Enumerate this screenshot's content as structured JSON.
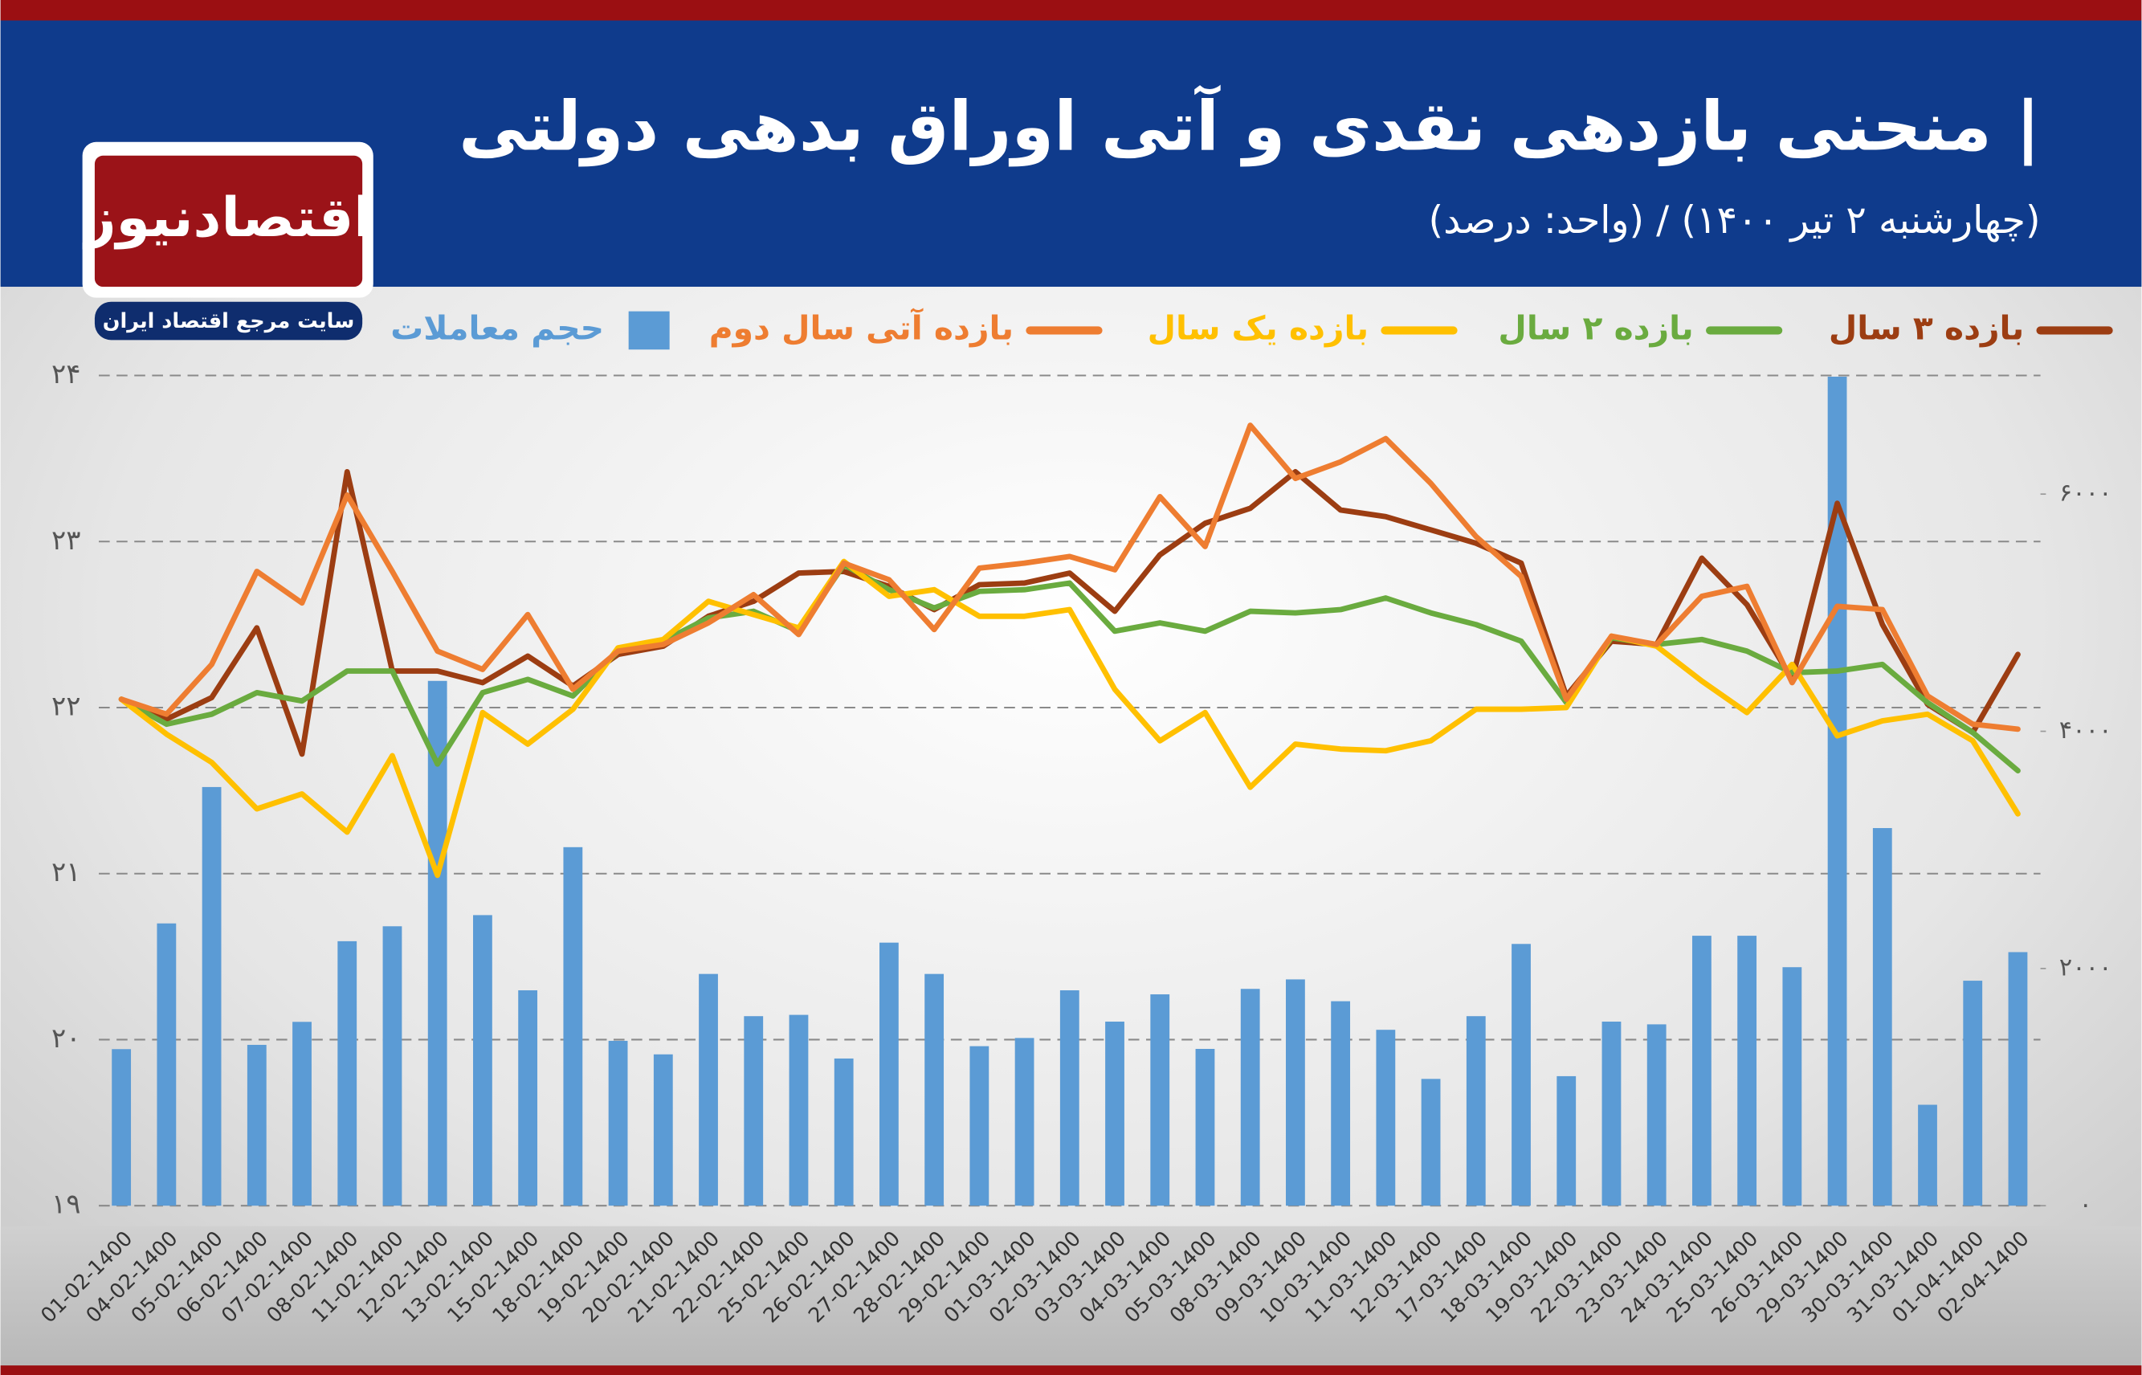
{
  "logo": {
    "name": "اقتصادنیوز",
    "tagline": "سایت مرجع اقتصاد ایران"
  },
  "chart_data": {
    "type": "bar-line",
    "title": "| منحنی بازدهی نقدی و آتی اوراق بدهی دولتی",
    "subtitle": "(چهارشنبه ۲ تیر ۱۴۰۰) /  (واحد: درصد)",
    "categories": [
      "01-02-1400",
      "04-02-1400",
      "05-02-1400",
      "06-02-1400",
      "07-02-1400",
      "08-02-1400",
      "11-02-1400",
      "12-02-1400",
      "13-02-1400",
      "15-02-1400",
      "18-02-1400",
      "19-02-1400",
      "20-02-1400",
      "21-02-1400",
      "22-02-1400",
      "25-02-1400",
      "26-02-1400",
      "27-02-1400",
      "28-02-1400",
      "29-02-1400",
      "01-03-1400",
      "02-03-1400",
      "03-03-1400",
      "04-03-1400",
      "05-03-1400",
      "08-03-1400",
      "09-03-1400",
      "10-03-1400",
      "11-03-1400",
      "12-03-1400",
      "17-03-1400",
      "18-03-1400",
      "19-03-1400",
      "22-03-1400",
      "23-03-1400",
      "24-03-1400",
      "25-03-1400",
      "26-03-1400",
      "29-03-1400",
      "30-03-1400",
      "31-03-1400",
      "01-04-1400",
      "02-04-1400"
    ],
    "series": [
      {
        "name": "بازده ۳ سال",
        "type": "line",
        "color": "#9c3d12",
        "values": [
          22.05,
          21.93,
          22.06,
          22.48,
          21.72,
          23.42,
          22.22,
          22.22,
          22.15,
          22.31,
          22.13,
          22.32,
          22.37,
          22.55,
          22.64,
          22.81,
          22.82,
          22.73,
          22.59,
          22.74,
          22.75,
          22.81,
          22.58,
          22.92,
          23.11,
          23.2,
          23.42,
          23.19,
          23.15,
          23.07,
          22.99,
          22.87,
          22.07,
          22.4,
          22.38,
          22.9,
          22.62,
          22.17,
          23.23,
          22.5,
          22.02,
          21.85,
          22.32
        ]
      },
      {
        "name": "بازده ۲ سال",
        "type": "line",
        "color": "#6aab3f",
        "values": [
          22.05,
          21.9,
          21.96,
          22.09,
          22.04,
          22.22,
          22.22,
          21.66,
          22.09,
          22.17,
          22.07,
          22.34,
          22.4,
          22.54,
          22.58,
          22.46,
          22.86,
          22.71,
          22.6,
          22.7,
          22.71,
          22.75,
          22.46,
          22.51,
          22.46,
          22.58,
          22.57,
          22.59,
          22.66,
          22.57,
          22.5,
          22.4,
          22.03,
          22.42,
          22.38,
          22.41,
          22.34,
          22.21,
          22.22,
          22.26,
          22.03,
          21.85,
          21.62
        ]
      },
      {
        "name": "بازده یک سال",
        "type": "line",
        "color": "#ffc000",
        "values": [
          22.05,
          21.84,
          21.67,
          21.39,
          21.48,
          21.25,
          21.71,
          20.99,
          21.97,
          21.78,
          21.99,
          22.36,
          22.41,
          22.64,
          22.56,
          22.48,
          22.88,
          22.67,
          22.71,
          22.55,
          22.55,
          22.59,
          22.11,
          21.8,
          21.97,
          21.52,
          21.78,
          21.75,
          21.74,
          21.8,
          21.99,
          21.99,
          22.0,
          22.43,
          22.37,
          22.16,
          21.97,
          22.26,
          21.83,
          21.92,
          21.96,
          21.8,
          21.36
        ]
      },
      {
        "name": "بازده آتی سال دوم",
        "type": "line",
        "color": "#ee7d31",
        "values": [
          22.05,
          21.96,
          22.26,
          22.82,
          22.63,
          23.28,
          22.82,
          22.34,
          22.23,
          22.56,
          22.11,
          22.34,
          22.38,
          22.51,
          22.68,
          22.44,
          22.87,
          22.77,
          22.47,
          22.84,
          22.87,
          22.91,
          22.83,
          23.27,
          22.97,
          23.7,
          23.38,
          23.48,
          23.62,
          23.35,
          23.03,
          22.79,
          22.05,
          22.43,
          22.38,
          22.67,
          22.73,
          22.15,
          22.61,
          22.59,
          22.07,
          21.9,
          21.87
        ]
      },
      {
        "name": "حجم معاملات",
        "type": "bar",
        "axis": "y2",
        "color": "#5b9bd5",
        "values": [
          1320,
          2380,
          3530,
          1356,
          1550,
          2230,
          2356,
          4425,
          2450,
          1816,
          3023,
          1390,
          1276,
          1954,
          1598,
          1609,
          1241,
          2218,
          1954,
          1345,
          1414,
          1816,
          1552,
          1782,
          1322,
          1828,
          1908,
          1724,
          1483,
          1069,
          1598,
          2207,
          1092,
          1552,
          1529,
          2276,
          2276,
          2011,
          6990,
          3184,
          851,
          1897,
          2138
        ]
      }
    ],
    "ylim": [
      19,
      24
    ],
    "yticks": [
      {
        "value": 19,
        "label": "۱۹"
      },
      {
        "value": 20,
        "label": "۲۰"
      },
      {
        "value": 21,
        "label": "۲۱"
      },
      {
        "value": 22,
        "label": "۲۲"
      },
      {
        "value": 23,
        "label": "۲۳"
      },
      {
        "value": 24,
        "label": "۲۴"
      }
    ],
    "y2lim": [
      0,
      7000
    ],
    "y2ticks": [
      {
        "value": 0,
        "label": "۰"
      },
      {
        "value": 2000,
        "label": "۲۰۰۰"
      },
      {
        "value": 4000,
        "label": "۴۰۰۰"
      },
      {
        "value": 6000,
        "label": "۶۰۰۰"
      }
    ],
    "grid": true,
    "legend": "top"
  }
}
